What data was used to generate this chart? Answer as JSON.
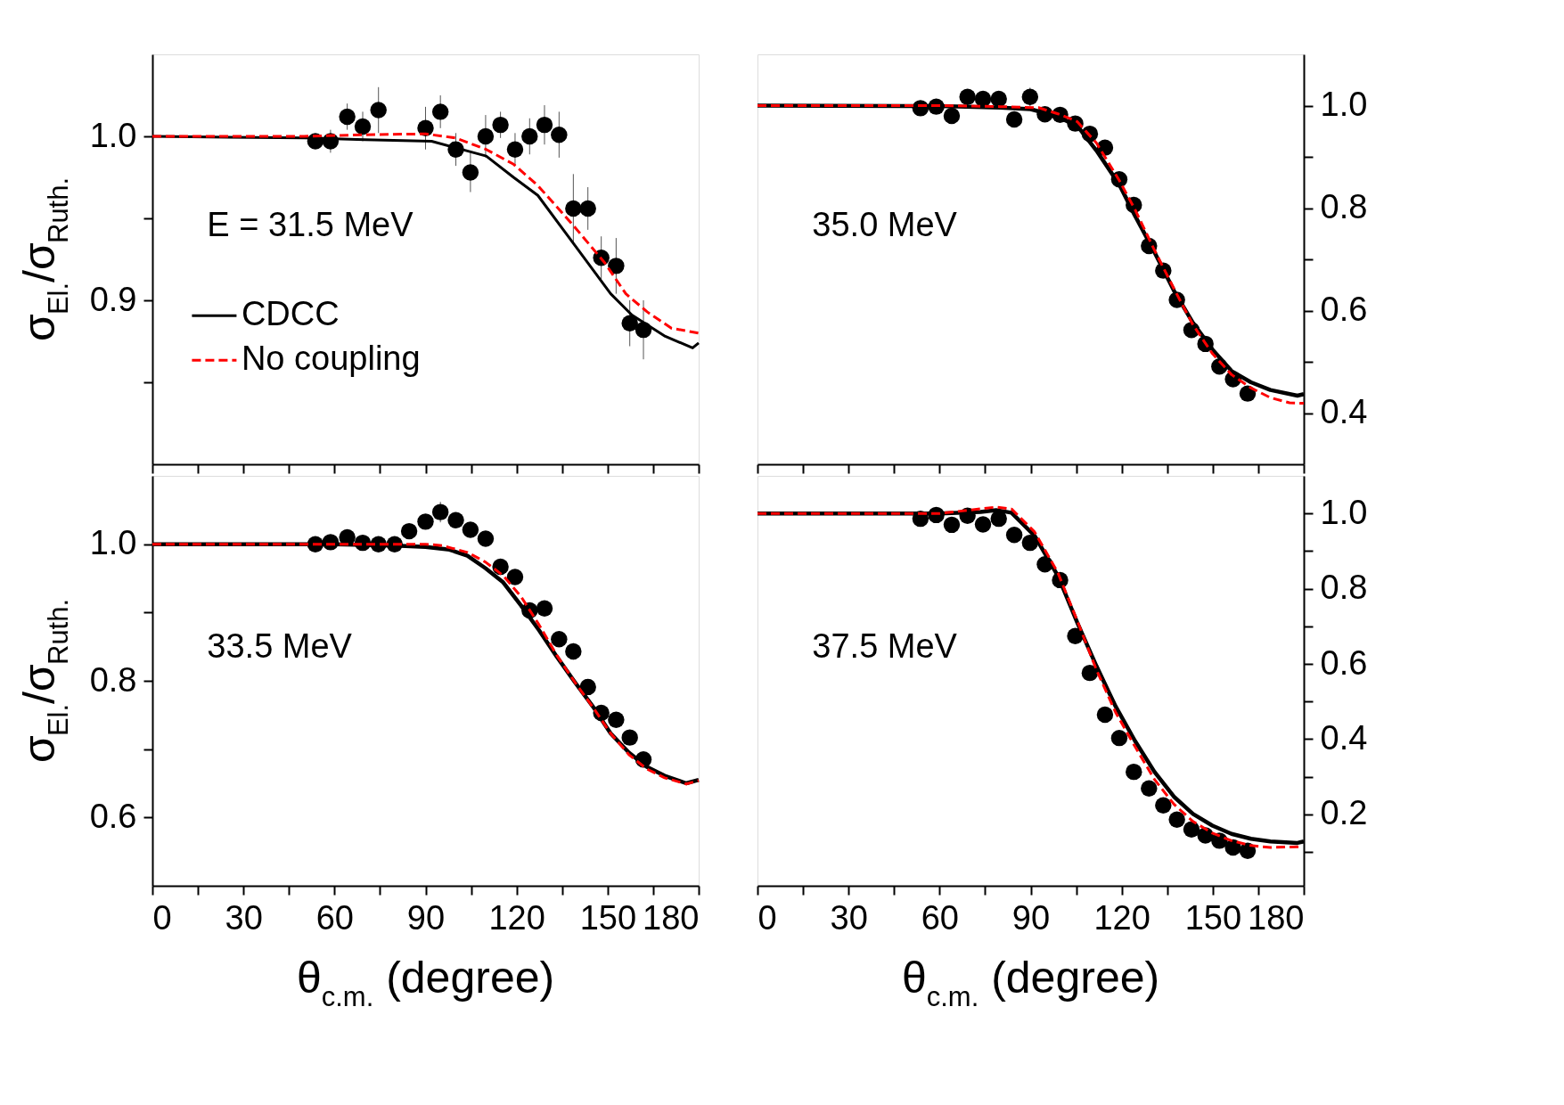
{
  "chart_data": [
    {
      "type": "line",
      "xlim": [
        0,
        180
      ],
      "ylim": [
        0.8,
        1.05
      ],
      "xticks": [
        0,
        {
          "value": 15,
          "label": null
        },
        30,
        {
          "value": 45,
          "label": null
        },
        60,
        {
          "value": 75,
          "label": null
        },
        90,
        {
          "value": 105,
          "label": null
        },
        120,
        {
          "value": 135,
          "label": null
        },
        150,
        {
          "value": 165,
          "label": null
        },
        180
      ],
      "yticks": [
        {
          "value": 0.85,
          "label": null
        },
        0.9,
        {
          "value": 0.95,
          "label": null
        },
        {
          "value": 1.0,
          "label": "1.0"
        }
      ],
      "ylabel": "σ$_{El.}$/σ$_{Ruth.}$",
      "tick_labels": "y",
      "legend": "bottom left",
      "annotations": [
        "E = 31.5 MeV"
      ],
      "series": [
        {
          "name": "CDCC",
          "color": "#000000",
          "line_style": "solid",
          "x": [
            0,
            50,
            70,
            92,
            100,
            110,
            119,
            127,
            139,
            151,
            158,
            169,
            178,
            180
          ],
          "values": [
            1.0,
            0.999,
            0.998,
            0.997,
            0.993,
            0.988,
            0.975,
            0.964,
            0.934,
            0.904,
            0.891,
            0.878,
            0.871,
            0.874
          ]
        },
        {
          "name": "No coupling",
          "color": "#ff0000",
          "line_style": "dashed",
          "x": [
            0,
            50,
            70,
            90,
            100,
            110,
            119,
            127,
            139,
            149,
            156,
            163,
            171,
            180
          ],
          "values": [
            1.0,
            1.0,
            1.001,
            1.0015,
            0.999,
            0.992,
            0.983,
            0.97,
            0.945,
            0.923,
            0.904,
            0.893,
            0.883,
            0.88
          ]
        },
        {
          "type": "scatter",
          "color": "#000000",
          "marker": "circle",
          "x": [
            53.7,
            58.7,
            64.2,
            69.3,
            74.5,
            90.0,
            94.9,
            100.0,
            104.8,
            109.8,
            114.7,
            119.5,
            124.3,
            129.2,
            134.0,
            138.7,
            143.5,
            147.9,
            152.8,
            157.3,
            161.8
          ],
          "values": [
            0.997,
            0.997,
            1.012,
            1.006,
            1.016,
            1.005,
            1.015,
            0.992,
            0.978,
            1.0,
            1.007,
            0.992,
            1.0,
            1.007,
            1.001,
            0.956,
            0.956,
            0.926,
            0.921,
            0.886,
            0.882
          ],
          "errors": [
            0.004,
            0.007,
            0.008,
            0.009,
            0.014,
            0.013,
            0.01,
            0.01,
            0.012,
            0.013,
            0.008,
            0.01,
            0.011,
            0.012,
            0.014,
            0.021,
            0.013,
            0.013,
            0.017,
            0.014,
            0.018
          ]
        }
      ]
    },
    {
      "type": "line",
      "xlim": [
        0,
        180
      ],
      "ylim": [
        0.3,
        1.1
      ],
      "xticks": [
        0,
        {
          "value": 15,
          "label": null
        },
        30,
        {
          "value": 45,
          "label": null
        },
        60,
        {
          "value": 75,
          "label": null
        },
        90,
        {
          "value": 105,
          "label": null
        },
        120,
        {
          "value": 135,
          "label": null
        },
        150,
        {
          "value": 165,
          "label": null
        },
        180
      ],
      "yticks": [
        0.4,
        {
          "value": 0.5,
          "label": null
        },
        0.6,
        {
          "value": 0.7,
          "label": null
        },
        0.8,
        {
          "value": 0.9,
          "label": null
        },
        {
          "value": 1.0,
          "label": "1.0"
        }
      ],
      "tick_labels": "y",
      "annotations": [
        "35.0 MeV"
      ],
      "series": [
        {
          "type": "line",
          "color": "#000000",
          "line_style": "solid",
          "x": [
            0,
            60,
            80,
            90,
            95,
            100,
            105.3,
            111.7,
            119.3,
            124.4,
            130.8,
            137.2,
            143.5,
            149.9,
            156.2,
            162.6,
            169,
            177.9,
            180
          ],
          "values": [
            1.0,
            0.999,
            0.996,
            0.993,
            0.985,
            0.975,
            0.961,
            0.912,
            0.845,
            0.785,
            0.714,
            0.639,
            0.576,
            0.524,
            0.482,
            0.46,
            0.445,
            0.434,
            0.437
          ]
        },
        {
          "type": "line",
          "color": "#ff0000",
          "line_style": "dashed",
          "x": [
            0,
            60,
            80,
            92.6,
            99,
            105.3,
            111.7,
            119.3,
            124.4,
            130.8,
            137.2,
            143.5,
            149.9,
            156.2,
            162.6,
            169,
            175.3,
            180
          ],
          "values": [
            1.0,
            1.0,
            0.998,
            0.996,
            0.984,
            0.969,
            0.927,
            0.853,
            0.797,
            0.718,
            0.643,
            0.572,
            0.516,
            0.475,
            0.449,
            0.43,
            0.42,
            0.419
          ]
        },
        {
          "type": "scatter",
          "color": "#000000",
          "marker": "circle",
          "x": [
            53.7,
            58.9,
            64.0,
            69.2,
            74.3,
            79.5,
            84.6,
            89.8,
            94.7,
            99.7,
            104.7,
            109.5,
            114.5,
            119.2,
            124.0,
            129.0,
            133.7,
            138.2,
            143.0,
            147.6,
            152.2,
            156.7,
            161.5
          ],
          "values": [
            0.995,
            0.998,
            0.98,
            1.017,
            1.013,
            1.013,
            0.973,
            1.017,
            0.983,
            0.982,
            0.965,
            0.945,
            0.918,
            0.856,
            0.806,
            0.726,
            0.678,
            0.621,
            0.562,
            0.535,
            0.491,
            0.466,
            0.438
          ],
          "errors": [
            0.006,
            0.005,
            0.005,
            0.006,
            0.008,
            0.008,
            0.015,
            0.018,
            0.008,
            0.008,
            0.01,
            0.012,
            0.012,
            0.01,
            0.01,
            0.012,
            0.01,
            0.008,
            0.008,
            0.008,
            0.006,
            0.006,
            0.006
          ]
        }
      ]
    },
    {
      "type": "line",
      "xlim": [
        0,
        180
      ],
      "ylim": [
        0.5,
        1.1
      ],
      "xticks": [
        0,
        {
          "value": 15,
          "label": null
        },
        30,
        {
          "value": 45,
          "label": null
        },
        60,
        {
          "value": 75,
          "label": null
        },
        90,
        {
          "value": 105,
          "label": null
        },
        120,
        {
          "value": 135,
          "label": null
        },
        150,
        {
          "value": 165,
          "label": null
        },
        180
      ],
      "yticks": [
        0.6,
        {
          "value": 0.7,
          "label": null
        },
        0.8,
        {
          "value": 0.9,
          "label": null
        },
        {
          "value": 1.0,
          "label": "1.0"
        }
      ],
      "xlabel": "θ$_{c.m.}$ (degree)",
      "ylabel": "σ$_{El.}$/σ$_{Ruth.}$",
      "annotations": [
        "33.5 MeV"
      ],
      "series": [
        {
          "type": "line",
          "color": "#000000",
          "line_style": "solid",
          "x": [
            0,
            60,
            80,
            90,
            97.9,
            103.8,
            109.7,
            115.6,
            121.5,
            127.4,
            133.3,
            139.2,
            145.2,
            151,
            157,
            162.9,
            168.8,
            175.9,
            180
          ],
          "values": [
            1.0,
            1.0,
            0.998,
            0.996,
            0.992,
            0.983,
            0.965,
            0.944,
            0.91,
            0.874,
            0.835,
            0.798,
            0.762,
            0.723,
            0.695,
            0.674,
            0.661,
            0.65,
            0.655
          ]
        },
        {
          "type": "line",
          "color": "#ff0000",
          "line_style": "dashed",
          "x": [
            0,
            60,
            90,
            95.5,
            103.8,
            109.7,
            115.6,
            121.5,
            127.4,
            133.3,
            139.2,
            145.2,
            151,
            157,
            162.9,
            168.8,
            175.9,
            180
          ],
          "values": [
            1.0,
            1.0,
            1.0,
            0.998,
            0.988,
            0.974,
            0.954,
            0.923,
            0.882,
            0.837,
            0.798,
            0.761,
            0.723,
            0.692,
            0.671,
            0.658,
            0.649,
            0.654
          ]
        },
        {
          "type": "scatter",
          "color": "#000000",
          "marker": "circle",
          "x": [
            53.7,
            58.7,
            64.2,
            69.3,
            74.5,
            79.8,
            84.6,
            90.0,
            94.9,
            100.0,
            104.8,
            109.8,
            114.7,
            119.5,
            124.3,
            129.2,
            134.0,
            138.7,
            143.5,
            147.9,
            152.8,
            157.3,
            161.8
          ],
          "values": [
            1.0,
            1.003,
            1.01,
            1.002,
            1.0,
            1.0,
            1.019,
            1.033,
            1.047,
            1.035,
            1.021,
            1.008,
            0.967,
            0.952,
            0.903,
            0.906,
            0.861,
            0.843,
            0.791,
            0.753,
            0.743,
            0.717,
            0.685
          ],
          "errors": [
            0.004,
            0.004,
            0.004,
            0.004,
            0.004,
            0.004,
            0.006,
            0.006,
            0.015,
            0.008,
            0.01,
            0.01,
            0.01,
            0.006,
            0.006,
            0.01,
            0.008,
            0.012,
            0.006,
            0.006,
            0.006,
            0.006,
            0.006
          ]
        }
      ]
    },
    {
      "type": "line",
      "xlim": [
        0,
        180
      ],
      "ylim": [
        0.01,
        1.1
      ],
      "xticks": [
        0,
        {
          "value": 15,
          "label": null
        },
        30,
        {
          "value": 45,
          "label": null
        },
        60,
        {
          "value": 75,
          "label": null
        },
        90,
        {
          "value": 105,
          "label": null
        },
        120,
        {
          "value": 135,
          "label": null
        },
        150,
        {
          "value": 165,
          "label": null
        },
        180
      ],
      "yticks": [
        {
          "value": 0.1,
          "label": null
        },
        0.2,
        {
          "value": 0.3,
          "label": null
        },
        0.4,
        {
          "value": 0.5,
          "label": null
        },
        0.6,
        {
          "value": 0.7,
          "label": null
        },
        0.8,
        {
          "value": 0.9,
          "label": null
        },
        {
          "value": 1.0,
          "label": "1.0"
        }
      ],
      "xlabel": "θ$_{c.m.}$ (degree)",
      "annotations": [
        "37.5 MeV"
      ],
      "series": [
        {
          "type": "line",
          "color": "#000000",
          "line_style": "solid",
          "x": [
            0,
            60,
            73.5,
            78.6,
            83.7,
            91.3,
            99,
            105.3,
            111.7,
            118,
            124.4,
            130.8,
            137.2,
            143.5,
            149.9,
            156.2,
            162.6,
            169,
            177.9,
            180
          ],
          "values": [
            1.0,
            1.0,
            1.004,
            1.009,
            1.002,
            0.941,
            0.834,
            0.711,
            0.594,
            0.487,
            0.395,
            0.313,
            0.247,
            0.201,
            0.17,
            0.148,
            0.135,
            0.128,
            0.124,
            0.128
          ]
        },
        {
          "type": "line",
          "color": "#ff0000",
          "line_style": "dashed",
          "x": [
            0,
            60,
            78.6,
            83.7,
            91.3,
            99,
            105.3,
            111.7,
            118,
            124.4,
            130.8,
            137.2,
            143.5,
            149.9,
            156.2,
            162.6,
            169,
            179
          ],
          "values": [
            1.0,
            1.0,
            1.017,
            1.012,
            0.951,
            0.842,
            0.716,
            0.584,
            0.471,
            0.38,
            0.293,
            0.227,
            0.181,
            0.15,
            0.13,
            0.117,
            0.112,
            0.114
          ]
        },
        {
          "type": "scatter",
          "color": "#000000",
          "marker": "circle",
          "x": [
            53.7,
            58.9,
            64.0,
            69.2,
            74.3,
            79.5,
            84.6,
            89.8,
            94.7,
            99.7,
            104.7,
            109.5,
            114.5,
            119.2,
            124.0,
            129.0,
            133.7,
            138.2,
            143.0,
            147.6,
            152.2,
            156.7,
            161.5
          ],
          "values": [
            0.986,
            0.996,
            0.97,
            0.994,
            0.971,
            0.986,
            0.943,
            0.922,
            0.865,
            0.823,
            0.674,
            0.576,
            0.465,
            0.403,
            0.313,
            0.269,
            0.224,
            0.186,
            0.16,
            0.144,
            0.13,
            0.112,
            0.103
          ]
        }
      ]
    }
  ]
}
